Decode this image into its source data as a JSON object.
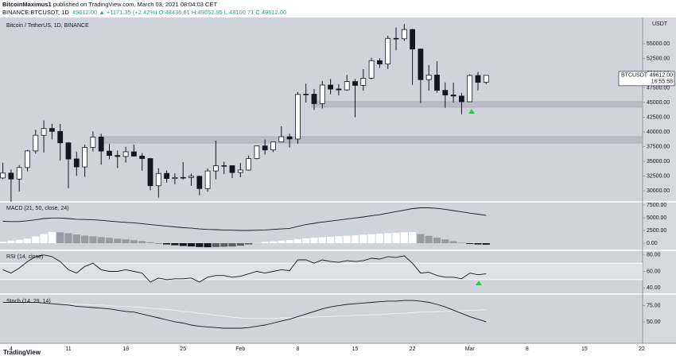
{
  "header": {
    "author": "BitcoinMaximus1",
    "published": "published on TradingView.com, March 03, 2021 08:04:03 CET",
    "symbol": "BINANCE:BTCUSDT, 1D",
    "price": "49612.00",
    "change": "▲ +1171.35 (+2.42%)",
    "open": "O:48436.61",
    "high": "H:49652.95",
    "low": "L:48100.71",
    "close": "C:49612.00"
  },
  "footer": "TradingView",
  "chart_data": [
    {
      "type": "candlestick",
      "title": "Bitcoin / TetherUS, 1D, BINANCE",
      "unit": "USDT",
      "categories": [
        null,
        "4",
        null,
        null,
        null,
        null,
        null,
        null,
        "11",
        null,
        null,
        null,
        null,
        null,
        null,
        "18",
        null,
        null,
        null,
        null,
        null,
        null,
        "25",
        null,
        null,
        null,
        null,
        null,
        null,
        "Feb",
        null,
        null,
        null,
        null,
        null,
        null,
        "8",
        null,
        null,
        null,
        null,
        null,
        null,
        "15",
        null,
        null,
        null,
        null,
        null,
        null,
        "22",
        null,
        null,
        null,
        null,
        null,
        null,
        "Mar",
        null,
        null,
        null,
        null,
        null,
        null,
        "8",
        null,
        null,
        null,
        null,
        null,
        null,
        "15",
        null,
        null,
        null,
        null,
        null,
        null,
        "22"
      ],
      "open": [
        32176,
        33000,
        31989,
        33950,
        36769,
        39432,
        40586,
        40088,
        38150,
        35410,
        34049,
        37371,
        39141,
        36733,
        35995,
        35824,
        36622,
        35901,
        35468,
        30851,
        32950,
        32078,
        32259,
        32251,
        32464,
        30362,
        33368,
        34246,
        34262,
        33092,
        33518,
        35467,
        37619,
        36936,
        38289,
        39181,
        38796,
        46374,
        46420,
        44807,
        47969,
        47298,
        47156,
        48580,
        47911,
        49133,
        52117,
        51550,
        55906,
        55842,
        57412,
        54088,
        48891,
        49677,
        47073,
        46277,
        46103,
        45134,
        49595,
        48436.61,
        null,
        null,
        null,
        null,
        null,
        null,
        null,
        null,
        null,
        null,
        null,
        null,
        null,
        null,
        null,
        null,
        null,
        null,
        null
      ],
      "high": [
        34778,
        33600,
        34360,
        36939,
        40365,
        41950,
        41380,
        41350,
        38264,
        36628,
        37850,
        40100,
        39700,
        37950,
        36852,
        37469,
        37850,
        36415,
        35600,
        33826,
        33456,
        32944,
        34881,
        32921,
        32557,
        33783,
        38531,
        34933,
        34342,
        34717,
        35984,
        37662,
        38708,
        38310,
        40955,
        39700,
        46794,
        48200,
        47310,
        48678,
        48985,
        48150,
        49707,
        49010,
        50690,
        52618,
        52530,
        56368,
        57767,
        58352,
        57534,
        54183,
        51374,
        52041,
        48425,
        48394,
        46638,
        49790,
        50200,
        49652.95,
        null,
        null,
        null,
        null,
        null,
        null,
        null,
        null,
        null,
        null,
        null,
        null,
        null,
        null,
        null,
        null,
        null,
        null,
        null
      ],
      "low": [
        31962,
        28130,
        29900,
        33288,
        36300,
        36500,
        38720,
        35111,
        30420,
        32531,
        32380,
        36701,
        34408,
        35357,
        33850,
        34800,
        35844,
        33400,
        30071,
        28850,
        31390,
        31106,
        31910,
        30837,
        29241,
        29842,
        31915,
        32825,
        32171,
        32296,
        33418,
        35362,
        36161,
        36570,
        38215,
        37351,
        37989,
        45000,
        43727,
        43994,
        46400,
        46202,
        47014,
        42500,
        47003,
        48947,
        50901,
        50710,
        53863,
        55477,
        48000,
        44892,
        47003,
        46650,
        44106,
        45000,
        43000,
        45115,
        47047,
        48100.71,
        null,
        null,
        null,
        null,
        null,
        null,
        null,
        null,
        null,
        null,
        null,
        null,
        null,
        null,
        null,
        null,
        null,
        null,
        null
      ],
      "close": [
        33000,
        31988,
        33949,
        36769,
        39432,
        40582,
        40088,
        38150,
        35404,
        34051,
        37371,
        39144,
        36742,
        35994,
        35828,
        36631,
        35891,
        35468,
        30850,
        32945,
        32078,
        32259,
        32254,
        32467,
        30366,
        33364,
        34252,
        34262,
        33092,
        33526,
        35466,
        37618,
        36936,
        38290,
        39186,
        38795,
        46374,
        46420,
        44807,
        47969,
        47287,
        47153,
        48577,
        47911,
        49133,
        52119,
        51552,
        55906,
        55841,
        57408,
        54087,
        48891,
        49676,
        47073,
        46276,
        46106,
        45135,
        49587,
        48441,
        49612.0,
        null,
        null,
        null,
        null,
        null,
        null,
        null,
        null,
        null,
        null,
        null,
        null,
        null,
        null,
        null,
        null,
        null,
        null,
        null
      ],
      "up_color": "#ffffff",
      "down_color": "#131722",
      "ylim": [
        28380,
        59190
      ],
      "yticks": [
        {
          "value": 30000,
          "label": "30000.00"
        },
        {
          "value": 32500,
          "label": "32500.00"
        },
        {
          "value": 35000,
          "label": "35000.00"
        },
        {
          "value": 37500,
          "label": "37500.00"
        },
        {
          "value": 40000,
          "label": "40000.00"
        },
        {
          "value": 42500,
          "label": "42500.00"
        },
        {
          "value": 45000,
          "label": "45000.00"
        },
        {
          "value": 47500,
          "label": "47500.00"
        },
        {
          "value": 50000,
          "label": "50000.00"
        },
        {
          "value": 52500,
          "label": "52500.00"
        },
        {
          "value": 55000,
          "label": "55000.00"
        }
      ],
      "zones": [
        [
          44200,
          45150
        ],
        [
          38100,
          39200
        ]
      ],
      "last_price": {
        "name": "BTCUSDT",
        "value": 49612,
        "label": "49612.00",
        "countdown": "16:55:58"
      }
    },
    {
      "type": "macd",
      "title": "MACD (21, 50, close, 24)",
      "color": "#131722",
      "line": [
        4300,
        4250,
        4250,
        4400,
        4600,
        4850,
        4950,
        4950,
        4850,
        4700,
        4650,
        4600,
        4500,
        4350,
        4200,
        4100,
        4000,
        3850,
        3650,
        3500,
        3350,
        3200,
        3050,
        2950,
        2800,
        2700,
        2650,
        2600,
        2550,
        2500,
        2500,
        2550,
        2600,
        2700,
        2800,
        2900,
        3300,
        3650,
        3900,
        4150,
        4350,
        4550,
        4750,
        4950,
        5150,
        5400,
        5600,
        5900,
        6200,
        6500,
        6800,
        6950,
        6950,
        6850,
        6650,
        6400,
        6150,
        5900,
        5700,
        5450,
        null,
        null,
        null,
        null,
        null,
        null,
        null,
        null,
        null,
        null,
        null,
        null,
        null,
        null,
        null,
        null,
        null,
        null,
        null
      ],
      "histogram": [
        300,
        500,
        650,
        900,
        1300,
        1800,
        2200,
        2150,
        1950,
        1700,
        1500,
        1350,
        1200,
        1050,
        900,
        750,
        600,
        450,
        200,
        -50,
        -250,
        -400,
        -550,
        -650,
        -750,
        -800,
        -750,
        -700,
        -650,
        -500,
        -250,
        50,
        250,
        350,
        500,
        600,
        800,
        950,
        1050,
        1150,
        1250,
        1350,
        1450,
        1550,
        1650,
        1750,
        1850,
        1950,
        2050,
        2150,
        2200,
        1800,
        1450,
        1100,
        750,
        400,
        100,
        -150,
        -250,
        -300,
        null,
        null,
        null,
        null,
        null,
        null,
        null,
        null,
        null,
        null,
        null,
        null,
        null,
        null,
        null,
        null,
        null,
        null,
        null
      ],
      "ylim": [
        -1094,
        7812
      ],
      "yticks": [
        {
          "value": 0,
          "label": "0.00"
        },
        {
          "value": 2500,
          "label": "2500.00"
        },
        {
          "value": 5000,
          "label": "5000.00"
        },
        {
          "value": 7500,
          "label": "7500.00"
        }
      ]
    },
    {
      "type": "rsi",
      "title": "RSI (14, close)",
      "color": "#131722",
      "values": [
        62,
        58,
        64,
        72,
        78,
        80,
        78,
        72,
        62,
        58,
        66,
        70,
        62,
        60,
        60,
        62,
        60,
        58,
        47,
        52,
        50,
        51,
        51,
        52,
        47,
        53,
        55,
        55,
        53,
        54,
        57,
        60,
        58,
        60,
        62,
        61,
        74,
        74,
        70,
        74,
        72,
        71,
        73,
        72,
        73,
        76,
        75,
        78,
        77,
        79,
        70,
        58,
        59,
        55,
        53,
        53,
        51,
        58,
        56,
        57,
        null,
        null,
        null,
        null,
        null,
        null,
        null,
        null,
        null,
        null,
        null,
        null,
        null,
        null,
        null,
        null,
        null,
        null,
        null
      ],
      "band": [
        50,
        70
      ],
      "ylim": [
        34.4,
        83.7
      ],
      "yticks": [
        {
          "value": 40,
          "label": "40.00"
        },
        {
          "value": 60,
          "label": "60.00"
        },
        {
          "value": 80,
          "label": "80.00"
        }
      ]
    },
    {
      "type": "stoch",
      "title": "Stoch (14, 29, 14)",
      "k_color": "#131722",
      "d_color": "#f0f0f0",
      "k": [
        80,
        80,
        80,
        80,
        80,
        79,
        78,
        77,
        76,
        74,
        73,
        72,
        71,
        70,
        68,
        66,
        65,
        62,
        59,
        56,
        53,
        50,
        48,
        45,
        43,
        42,
        41,
        40,
        40,
        40,
        41,
        43,
        45,
        48,
        51,
        54,
        58,
        62,
        66,
        70,
        73,
        75,
        77,
        78,
        79,
        80,
        81,
        82,
        82,
        83,
        83,
        82,
        80,
        77,
        73,
        68,
        63,
        58,
        54,
        50,
        null,
        null,
        null,
        null,
        null,
        null,
        null,
        null,
        null,
        null,
        null,
        null,
        null,
        null,
        null,
        null,
        null,
        null,
        null
      ],
      "d": [
        79,
        79,
        79,
        79,
        79,
        79,
        78,
        78,
        78,
        77,
        77,
        76,
        76,
        75,
        74,
        74,
        73,
        72,
        71,
        70,
        69,
        68,
        66,
        65,
        63,
        62,
        60,
        59,
        57,
        56,
        55,
        55,
        55,
        55,
        56,
        56,
        56,
        57,
        57,
        58,
        58,
        59,
        59,
        60,
        60,
        61,
        61,
        62,
        63,
        63,
        64,
        65,
        65,
        66,
        66,
        67,
        67,
        68,
        68,
        69,
        null,
        null,
        null,
        null,
        null,
        null,
        null,
        null,
        null,
        null,
        null,
        null,
        null,
        null,
        null,
        null,
        null,
        null,
        null
      ],
      "ylim": [
        17.9,
        90.5
      ],
      "yticks": [
        {
          "value": 50,
          "label": "50.00"
        },
        {
          "value": 75,
          "label": "75.00"
        }
      ]
    }
  ]
}
